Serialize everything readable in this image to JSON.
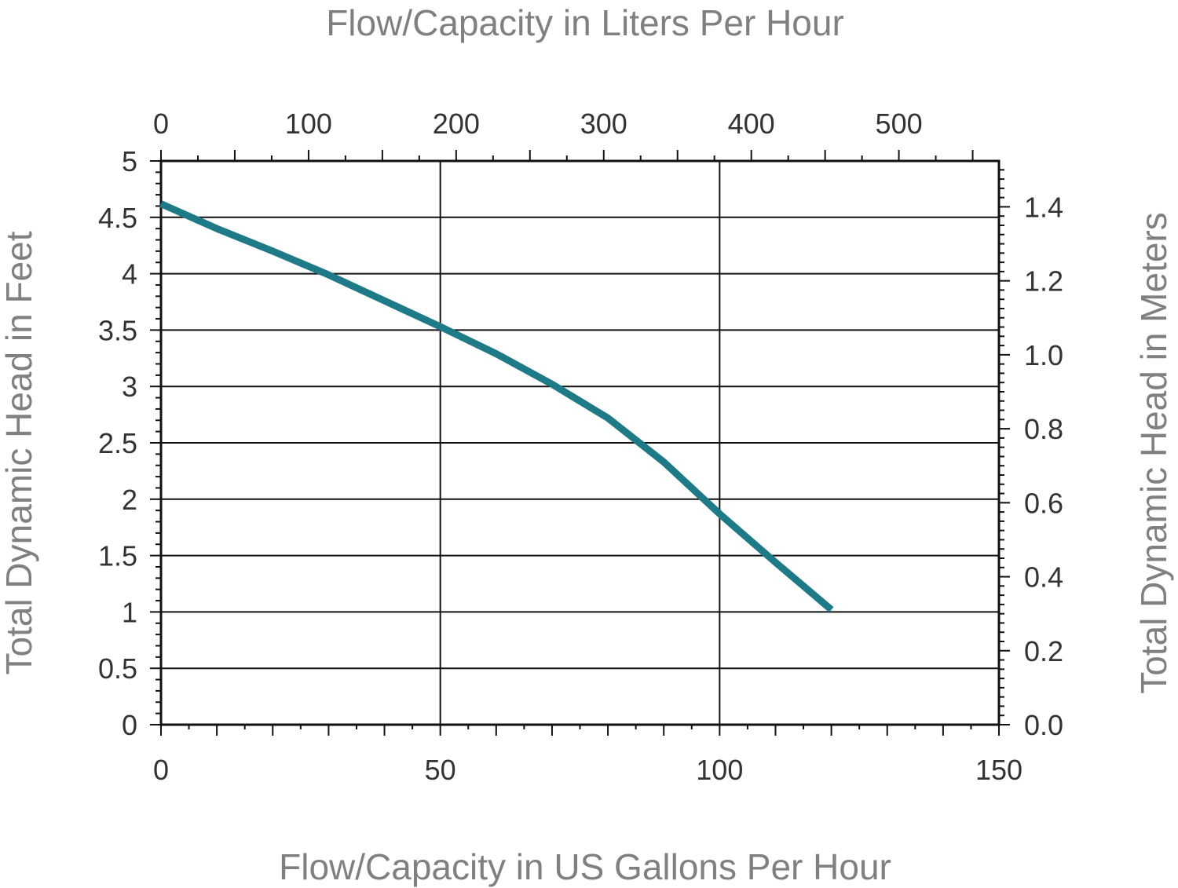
{
  "chart_data": {
    "type": "line",
    "title": "",
    "xlabel": "Flow/Capacity in US Gallons Per Hour",
    "x2label": "Flow/Capacity in Liters Per Hour",
    "ylabel": "Total Dynamic Head in Feet",
    "y2label": "Total Dynamic Head in Meters",
    "xlim": [
      0,
      150
    ],
    "ylim": [
      0,
      5
    ],
    "x2lim": [
      0,
      567.8
    ],
    "y2lim": [
      0,
      1.524
    ],
    "x_ticks": [
      "0",
      "50",
      "100",
      "150"
    ],
    "x_tick_values": [
      0,
      50,
      100,
      150
    ],
    "y_ticks": [
      "0",
      "0.5",
      "1",
      "1.5",
      "2",
      "2.5",
      "3",
      "3.5",
      "4",
      "4.5",
      "5"
    ],
    "y_tick_values": [
      0,
      0.5,
      1,
      1.5,
      2,
      2.5,
      3,
      3.5,
      4,
      4.5,
      5
    ],
    "x2_ticks": [
      "0",
      "100",
      "200",
      "300",
      "400",
      "500"
    ],
    "x2_tick_values": [
      0,
      100,
      200,
      300,
      400,
      500
    ],
    "y2_ticks": [
      "0.0",
      "0.2",
      "0.4",
      "0.6",
      "0.8",
      "1.0",
      "1.2",
      "1.4"
    ],
    "y2_tick_values": [
      0,
      0.2,
      0.4,
      0.6,
      0.8,
      1.0,
      1.2,
      1.4
    ],
    "grid": true,
    "legend": "none",
    "line_color": "#1f7a87",
    "series": [
      {
        "x": [
          0,
          10,
          20,
          30,
          40,
          50,
          60,
          70,
          80,
          90,
          100,
          110,
          120
        ],
        "y": [
          4.62,
          4.4,
          4.2,
          3.99,
          3.76,
          3.53,
          3.29,
          3.02,
          2.72,
          2.33,
          1.87,
          1.44,
          1.02
        ]
      }
    ]
  }
}
